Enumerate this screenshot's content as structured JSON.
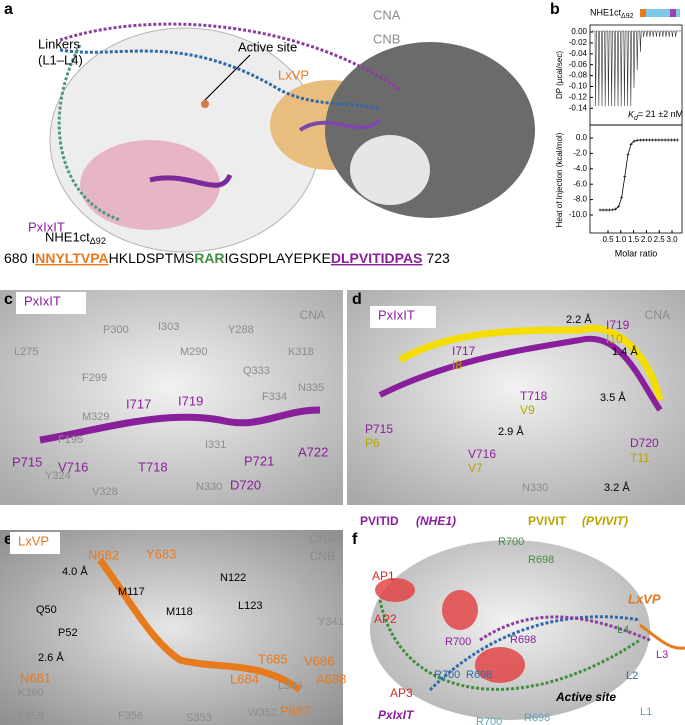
{
  "panel_a": {
    "label": "a",
    "labels": [
      "Linkers",
      "(L1–L4)",
      "Active site",
      "LxVP",
      "CNA",
      "CNB",
      "PxIxIT"
    ],
    "construct": "NHE1ct",
    "construct_sub": "Δ92",
    "sequence": [
      "680",
      "I",
      "NNYLTVPA",
      "HKLDSPTMS",
      "RAR",
      "IGSDPLAYEPKE",
      "DLPVITIDPAS",
      "723"
    ]
  },
  "panel_b": {
    "label": "b",
    "construct": "NHE1ct",
    "construct_sub": "Δ92",
    "top_ylabel": "DP (µcal/sec)",
    "top_yticks": [
      "0.00",
      "-0.02",
      "-0.04",
      "-0.06",
      "-0.08",
      "-0.10",
      "-0.12",
      "-0.14"
    ],
    "kd_symbol": "K",
    "kd_sub": "d",
    "kd_value": "= 21 ±2 nM",
    "bottom_ylabel": "Heat of Injection (kcal/mol)",
    "bottom_yticks": [
      "0.0",
      "-2.0",
      "-4.0",
      "-6.0",
      "-8.0",
      "-10.0"
    ],
    "xticks": [
      "0.5",
      "1.0",
      "1.5",
      "2.0",
      "2.5",
      "3.0"
    ],
    "xlabel": "Molar ratio"
  },
  "panel_c": {
    "label": "c",
    "labels": [
      "PxIxIT",
      "CNA",
      "P300",
      "I303",
      "Y288",
      "L275",
      "M290",
      "K318",
      "F299",
      "Q333",
      "N335",
      "M329",
      "F334",
      "F195",
      "I331",
      "Y324",
      "V328",
      "N330",
      "I717",
      "I719",
      "P715",
      "V716",
      "T718",
      "P721",
      "A722",
      "D720"
    ]
  },
  "panel_d": {
    "label": "d",
    "labels": [
      "PxIxIT",
      "CNA",
      "I717",
      "I8",
      "2.2 Å",
      "I719",
      "I10",
      "1.4 Å",
      "T718",
      "V9",
      "3.5 Å",
      "P715",
      "P6",
      "V716",
      "V7",
      "D720",
      "T11",
      "2.9 Å",
      "N330",
      "3.2 Å"
    ],
    "legend": [
      "PVITID",
      "(NHE1)",
      "PVIVIT",
      "(PVIVIT)"
    ]
  },
  "panel_e": {
    "label": "e",
    "labels": [
      "LxVP",
      "CNA",
      "CNB",
      "N682",
      "Y683",
      "4.0 Å",
      "M117",
      "N122",
      "M118",
      "Q50",
      "L123",
      "P52",
      "2.6 Å",
      "Y341",
      "N681",
      "T685",
      "V686",
      "A688",
      "L684",
      "K360",
      "L343",
      "P687",
      "E359",
      "F356",
      "S353",
      "W352"
    ]
  },
  "panel_f": {
    "label": "f",
    "labels": [
      "R700",
      "R698",
      "AP1",
      "AP2",
      "R700",
      "R698",
      "L4",
      "L3",
      "LxVP",
      "R700",
      "R698",
      "L2",
      "AP3",
      "L1",
      "Active site",
      "PxIxIT",
      "R700",
      "R698"
    ]
  }
}
